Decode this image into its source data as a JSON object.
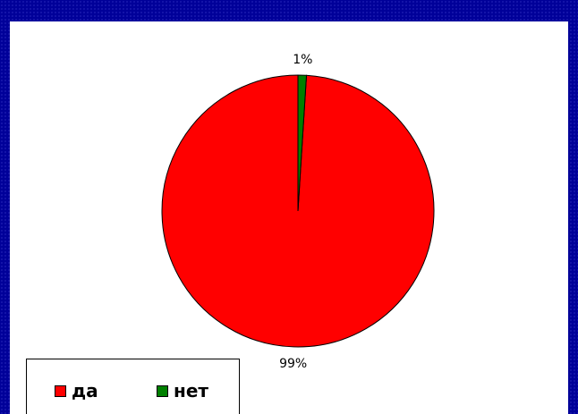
{
  "chart_data": {
    "type": "pie",
    "slices": [
      {
        "label": "да",
        "value": 99,
        "data_label": "99%",
        "color": "#ff0000"
      },
      {
        "label": "нет",
        "value": 1,
        "data_label": "1%",
        "color": "#008000"
      }
    ],
    "legend": {
      "placement": "bottom-left"
    }
  },
  "colors": {
    "background": "#000099",
    "plot_area": "#ffffff"
  }
}
